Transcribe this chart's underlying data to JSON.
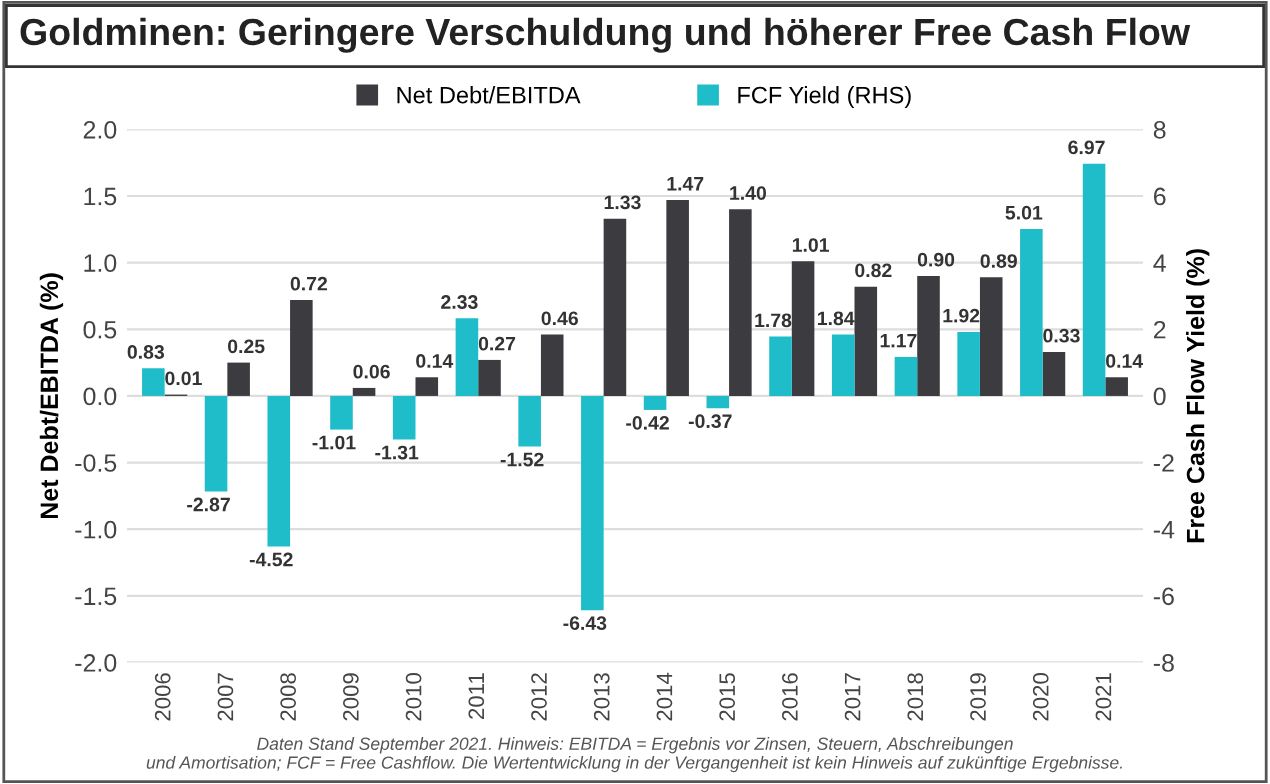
{
  "chart_data": {
    "type": "bar",
    "title": "Goldminen: Geringere Verschuldung und höherer Free Cash Flow",
    "categories": [
      "2006",
      "2007",
      "2008",
      "2009",
      "2010",
      "2011",
      "2012",
      "2013",
      "2014",
      "2015",
      "2016",
      "2017",
      "2018",
      "2019",
      "2020",
      "2021"
    ],
    "series": [
      {
        "name": "FCF Yield (RHS)",
        "color": "#1ebdc9",
        "axis": "y2",
        "values": [
          0.83,
          -2.87,
          -4.52,
          -1.01,
          -1.31,
          2.33,
          -1.52,
          -6.43,
          -0.42,
          -0.37,
          1.78,
          1.84,
          1.17,
          1.92,
          5.01,
          6.97
        ],
        "value_labels": [
          "0.83",
          "-2.87",
          "-4.52",
          "-1.01",
          "-1.31",
          "2.33",
          "-1.52",
          "-6.43",
          "-0.42",
          "-0.37",
          "1.78",
          "1.84",
          "1.17",
          "1.92",
          "5.01",
          "6.97"
        ]
      },
      {
        "name": "Net Debt/EBITDA",
        "color": "#3b3b40",
        "axis": "y",
        "values": [
          0.01,
          0.25,
          0.72,
          0.06,
          0.14,
          0.27,
          0.46,
          1.33,
          1.47,
          1.4,
          1.01,
          0.82,
          0.9,
          0.89,
          0.33,
          0.14
        ],
        "value_labels": [
          "0.01",
          "0.25",
          "0.72",
          "0.06",
          "0.14",
          "0.27",
          "0.46",
          "1.33",
          "1.47",
          "1.40",
          "1.01",
          "0.82",
          "0.90",
          "0.89",
          "0.33",
          "0.14"
        ]
      }
    ],
    "ylabel": "Net Debt/EBITDA (%)",
    "y2label": "Free Cash Flow Yield (%)",
    "ylim": [
      -2,
      2
    ],
    "yticks": [
      {
        "value": -2,
        "label": "-2.0"
      },
      {
        "value": -1.5,
        "label": "-1.5"
      },
      {
        "value": -1,
        "label": "-1.0"
      },
      {
        "value": -0.5,
        "label": "-0.5"
      },
      {
        "value": 0,
        "label": "0.0"
      },
      {
        "value": 0.5,
        "label": "0.5"
      },
      {
        "value": 1,
        "label": "1.0"
      },
      {
        "value": 1.5,
        "label": "1.5"
      },
      {
        "value": 2,
        "label": "2.0"
      }
    ],
    "y2lim": [
      -8,
      8
    ],
    "y2ticks": [
      -8,
      -6,
      -4,
      -2,
      0,
      2,
      4,
      6,
      8
    ],
    "grid": "y",
    "legend": "top",
    "annotations": [
      "Daten Stand September 2021. Hinweis: EBITDA = Ergebnis vor Zinsen, Steuern, Abschreibungen\nund Amortisation; FCF = Free Cashflow. Die Wertentwicklung in der Vergangenheit ist kein Hinweis auf zukünftige Ergebnisse."
    ]
  }
}
